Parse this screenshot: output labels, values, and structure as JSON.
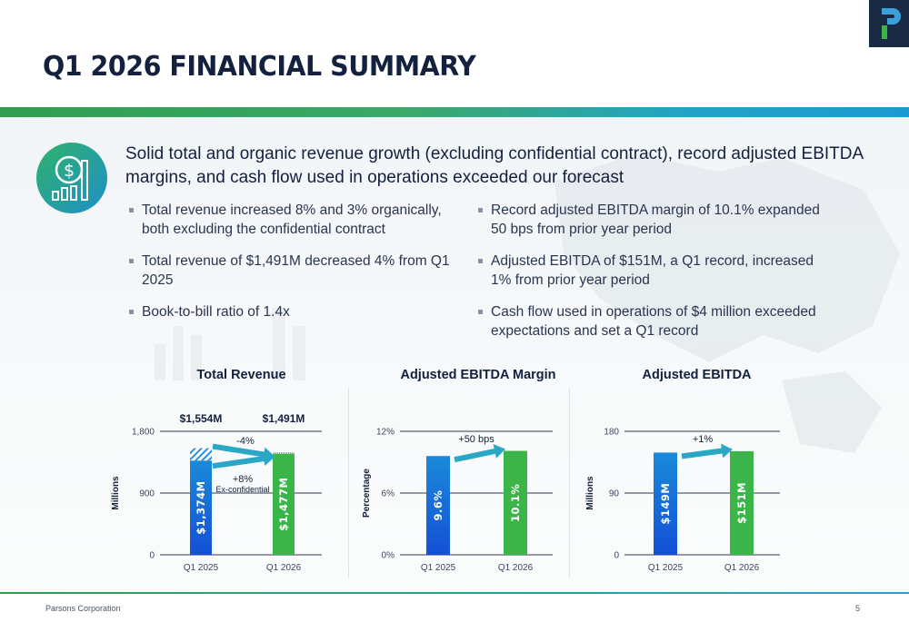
{
  "header": {
    "title": "Q1 2026 FINANCIAL SUMMARY",
    "logo_letter": "P"
  },
  "headline": "Solid total and organic revenue growth (excluding confidential contract), record adjusted EBITDA margins, and cash flow used in operations exceeded our forecast",
  "bullets_left": [
    "Total revenue increased 8% and 3% organically, both excluding the confidential contract",
    "Total revenue of $1,491M decreased 4% from Q1 2025",
    "Book-to-bill ratio of 1.4x"
  ],
  "bullets_right": [
    "Record adjusted EBITDA margin of 10.1% expanded 50 bps from prior year period",
    "Adjusted EBITDA of $151M, a Q1 record, increased 1% from prior year period",
    "Cash flow used in operations of $4 million exceeded expectations and set a Q1 record"
  ],
  "colors": {
    "blue_top": "#1a8ad8",
    "blue_bottom": "#1450d6",
    "green": "#3bb44a",
    "navy": "#13213f"
  },
  "chart_data": [
    {
      "type": "bar",
      "title": "Total Revenue",
      "categories": [
        "Q1 2025",
        "Q1 2026"
      ],
      "series": [
        {
          "name": "Ex-confidential",
          "values": [
            1374,
            1477
          ]
        },
        {
          "name": "Total",
          "values": [
            1554,
            1491
          ]
        }
      ],
      "bar_labels": [
        "$1,374M",
        "$1,477M"
      ],
      "total_labels": [
        "$1,554M",
        "$1,491M"
      ],
      "ylabel": "Millions",
      "ylim": [
        0,
        1800
      ],
      "yticks": [
        0,
        900,
        1800
      ],
      "ytick_labels": [
        "0",
        "900",
        "1,800"
      ],
      "annotations": {
        "total_change": "-4%",
        "excl_change": "+8%",
        "excl_note": "Ex-confidential"
      }
    },
    {
      "type": "bar",
      "title": "Adjusted EBITDA Margin",
      "categories": [
        "Q1 2025",
        "Q1 2026"
      ],
      "values": [
        9.6,
        10.1
      ],
      "bar_labels": [
        "9.6%",
        "10.1%"
      ],
      "ylabel": "Percentage",
      "ylim": [
        0,
        12
      ],
      "yticks": [
        0,
        6,
        12
      ],
      "ytick_labels": [
        "0%",
        "6%",
        "12%"
      ],
      "annotations": {
        "change": "+50 bps"
      }
    },
    {
      "type": "bar",
      "title": "Adjusted EBITDA",
      "categories": [
        "Q1 2025",
        "Q1 2026"
      ],
      "values": [
        149,
        151
      ],
      "bar_labels": [
        "$149M",
        "$151M"
      ],
      "ylabel": "Millions",
      "ylim": [
        0,
        180
      ],
      "yticks": [
        0,
        90,
        180
      ],
      "ytick_labels": [
        "0",
        "90",
        "180"
      ],
      "annotations": {
        "change": "+1%"
      }
    }
  ],
  "footer": {
    "company": "Parsons Corporation",
    "page": "5"
  }
}
